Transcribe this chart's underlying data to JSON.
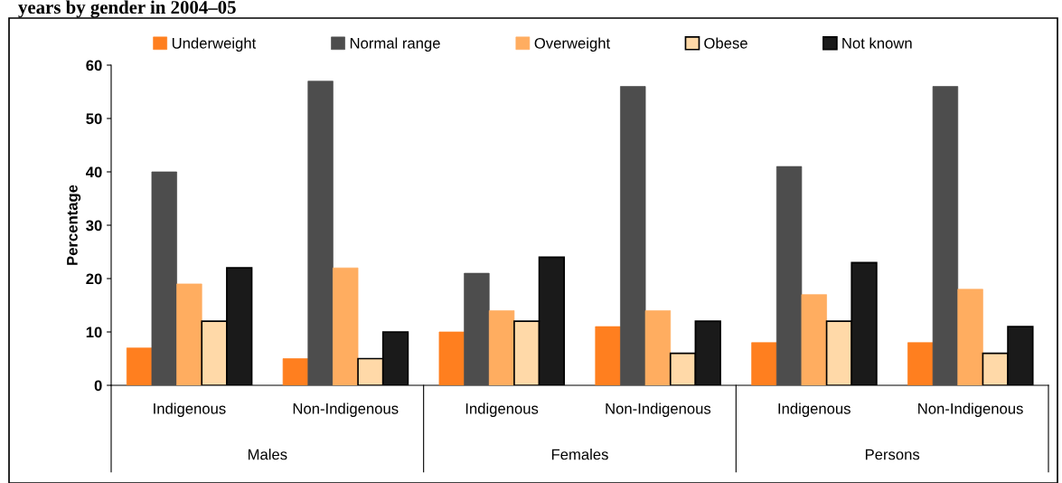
{
  "chart_data": {
    "type": "bar",
    "title": "years by gender in 2004–05",
    "ylabel": "Percentage",
    "categories": [
      "Indigenous",
      "Non-Indigenous",
      "Indigenous",
      "Non-Indigenous",
      "Indigenous",
      "Non-Indigenous"
    ],
    "annotations": [
      "Males",
      "Females",
      "Persons"
    ],
    "series": [
      {
        "name": "Underweight",
        "color": "#ff7f1f",
        "values": [
          7,
          5,
          10,
          11,
          8,
          8
        ]
      },
      {
        "name": "Normal range",
        "color": "#4d4d4d",
        "values": [
          40,
          57,
          21,
          56,
          41,
          56
        ]
      },
      {
        "name": "Overweight",
        "color": "#ffad60",
        "values": [
          19,
          22,
          14,
          14,
          17,
          18
        ]
      },
      {
        "name": "Obese",
        "color": "#ffd9a8",
        "values": [
          12,
          5,
          12,
          6,
          12,
          6
        ]
      },
      {
        "name": "Not known",
        "color": "#1a1a1a",
        "values": [
          22,
          10,
          24,
          12,
          23,
          11
        ]
      }
    ],
    "ylim": [
      0,
      60
    ],
    "yticks": [
      0,
      10,
      20,
      30,
      40,
      50,
      60
    ],
    "grid": false,
    "legend": "top"
  }
}
